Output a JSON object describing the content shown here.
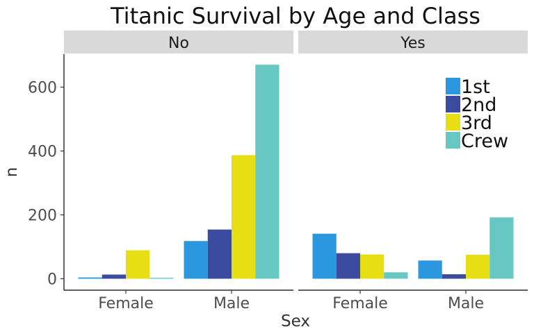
{
  "chart_data": {
    "type": "bar",
    "title": "Titanic Survival by Age and Class",
    "xlabel": "Sex",
    "ylabel": "n",
    "facet_labels": [
      "No",
      "Yes"
    ],
    "categories": [
      "Female",
      "Male"
    ],
    "ylim": [
      0,
      700
    ],
    "yticks": [
      0,
      200,
      400,
      600
    ],
    "grid": false,
    "legend_position": "top-right",
    "series": [
      {
        "name": "1st",
        "color": "#2B97DF"
      },
      {
        "name": "2nd",
        "color": "#3A4BA0"
      },
      {
        "name": "3rd",
        "color": "#E8DE14"
      },
      {
        "name": "Crew",
        "color": "#66C7C3"
      }
    ],
    "panels": [
      {
        "facet": "No",
        "values": {
          "Female": [
            4,
            13,
            89,
            3
          ],
          "Male": [
            118,
            154,
            387,
            670
          ]
        }
      },
      {
        "facet": "Yes",
        "values": {
          "Female": [
            141,
            80,
            76,
            20
          ],
          "Male": [
            57,
            14,
            75,
            192
          ]
        }
      }
    ]
  }
}
